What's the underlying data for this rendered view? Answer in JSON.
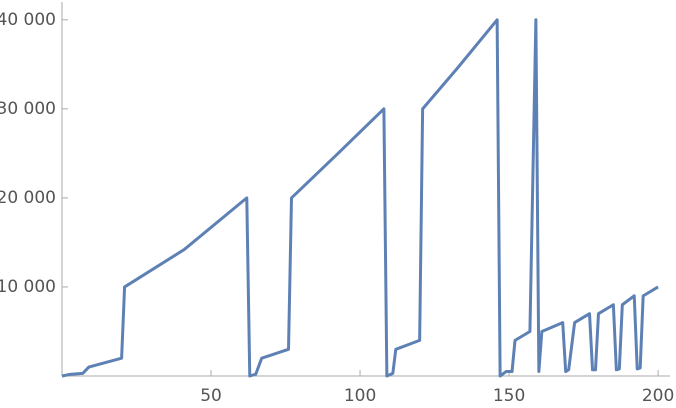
{
  "chart_data": {
    "type": "line",
    "x": [
      0,
      3,
      7,
      9,
      20,
      21,
      41,
      62,
      63,
      65,
      67,
      76,
      77,
      92,
      108,
      109,
      111,
      112,
      120,
      121,
      133,
      146,
      147,
      149,
      151,
      152,
      157,
      159,
      160,
      161,
      168,
      169,
      170,
      172,
      177,
      178,
      179,
      180,
      185,
      186,
      187,
      188,
      192,
      193,
      194,
      195,
      200
    ],
    "series": [
      {
        "color": "#5e81b5",
        "values": [
          0,
          200,
          300,
          1000,
          2000,
          10000,
          14200,
          20000,
          0,
          200,
          2000,
          3000,
          20000,
          24800,
          30000,
          0,
          300,
          3000,
          4000,
          30000,
          34700,
          40000,
          0,
          500,
          500,
          4000,
          5000,
          40000,
          500,
          5000,
          6000,
          500,
          700,
          6000,
          7000,
          700,
          700,
          7000,
          8000,
          700,
          800,
          8000,
          9000,
          800,
          900,
          9000,
          10000
        ]
      }
    ],
    "xlim": [
      0,
      204
    ],
    "ylim": [
      0,
      42000
    ],
    "xticks": [
      50,
      100,
      150,
      200
    ],
    "yticks": [
      {
        "value": 10000,
        "label": "10 000"
      },
      {
        "value": 20000,
        "label": "20 000"
      },
      {
        "value": 30000,
        "label": "30 000"
      },
      {
        "value": 40000,
        "label": "40 000"
      }
    ]
  }
}
